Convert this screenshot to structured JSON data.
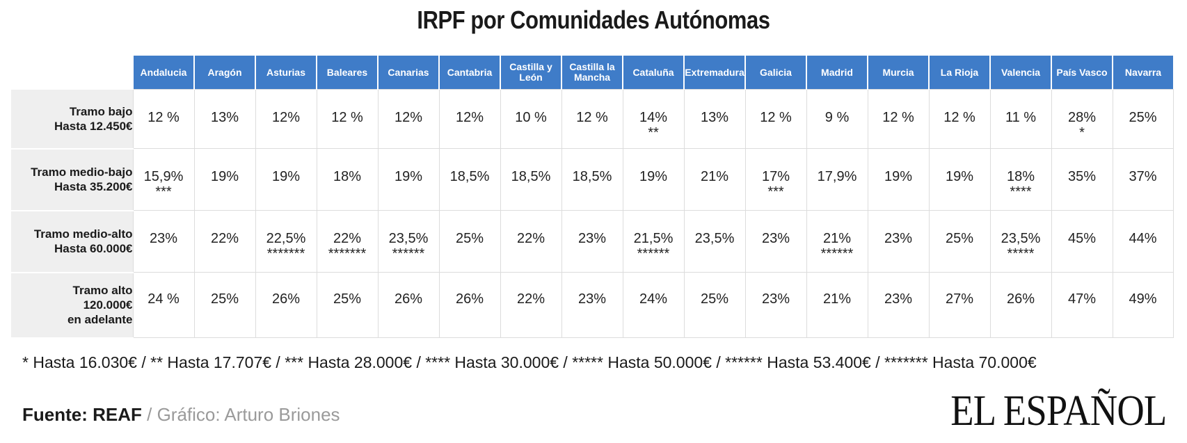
{
  "title": "IRPF por Comunidades Autónomas",
  "chart_data": {
    "type": "table",
    "columns": [
      "Andalucia",
      "Aragón",
      "Asturias",
      "Baleares",
      "Canarias",
      "Cantabria",
      "Castilla y León",
      "Castilla la Mancha",
      "Cataluña",
      "Extremadura",
      "Galicia",
      "Madrid",
      "Murcia",
      "La Rioja",
      "Valencia",
      "País Vasco",
      "Navarra"
    ],
    "rows": [
      {
        "label_line1": "Tramo bajo",
        "label_line2": "Hasta 12.450€",
        "label_line3": "",
        "values": [
          "12 %",
          "13%",
          "12%",
          "12 %",
          "12%",
          "12%",
          "10 %",
          "12 %",
          "14%",
          "13%",
          "12 %",
          "9 %",
          "12 %",
          "12 %",
          "11 %",
          "28%",
          "25%"
        ],
        "marks": [
          "",
          "",
          "",
          "",
          "",
          "",
          "",
          "",
          "**",
          "",
          "",
          "",
          "",
          "",
          "",
          "*",
          ""
        ]
      },
      {
        "label_line1": "Tramo medio-bajo",
        "label_line2": "Hasta 35.200€",
        "label_line3": "",
        "values": [
          "15,9%",
          "19%",
          "19%",
          "18%",
          "19%",
          "18,5%",
          "18,5%",
          "18,5%",
          "19%",
          "21%",
          "17%",
          "17,9%",
          "19%",
          "19%",
          "18%",
          "35%",
          "37%"
        ],
        "marks": [
          "***",
          "",
          "",
          "",
          "",
          "",
          "",
          "",
          "",
          "",
          "***",
          "",
          "",
          "",
          "****",
          "",
          ""
        ]
      },
      {
        "label_line1": "Tramo medio-alto",
        "label_line2": "Hasta 60.000€",
        "label_line3": "",
        "values": [
          "23%",
          "22%",
          "22,5%",
          "22%",
          "23,5%",
          "25%",
          "22%",
          "23%",
          "21,5%",
          "23,5%",
          "23%",
          "21%",
          "23%",
          "25%",
          "23,5%",
          "45%",
          "44%"
        ],
        "marks": [
          "",
          "",
          "*******",
          "*******",
          "******",
          "",
          "",
          "",
          "******",
          "",
          "",
          "******",
          "",
          "",
          "*****",
          "",
          ""
        ]
      },
      {
        "label_line1": "Tramo alto",
        "label_line2": "120.000€",
        "label_line3": "en adelante",
        "values": [
          "24 %",
          "25%",
          "26%",
          "25%",
          "26%",
          "26%",
          "22%",
          "23%",
          "24%",
          "25%",
          "23%",
          "21%",
          "23%",
          "27%",
          "26%",
          "47%",
          "49%"
        ],
        "marks": [
          "",
          "",
          "",
          "",
          "",
          "",
          "",
          "",
          "",
          "",
          "",
          "",
          "",
          "",
          "",
          "",
          ""
        ]
      }
    ]
  },
  "footnote": "* Hasta 16.030€ / ** Hasta 17.707€ / *** Hasta 28.000€ / **** Hasta 30.000€ / ***** Hasta 50.000€ / ****** Hasta 53.400€ / ******* Hasta 70.000€",
  "source": {
    "label": "Fuente: REAF",
    "separator": " / ",
    "credit": "Gráfico: Arturo Briones"
  },
  "logo_text": "EL ESPAÑOL",
  "colors": {
    "header_bg": "#3f7cc8",
    "rowhead_bg": "#efefef",
    "cell_border": "#dcdcdc",
    "credit": "#9a9a9a"
  }
}
